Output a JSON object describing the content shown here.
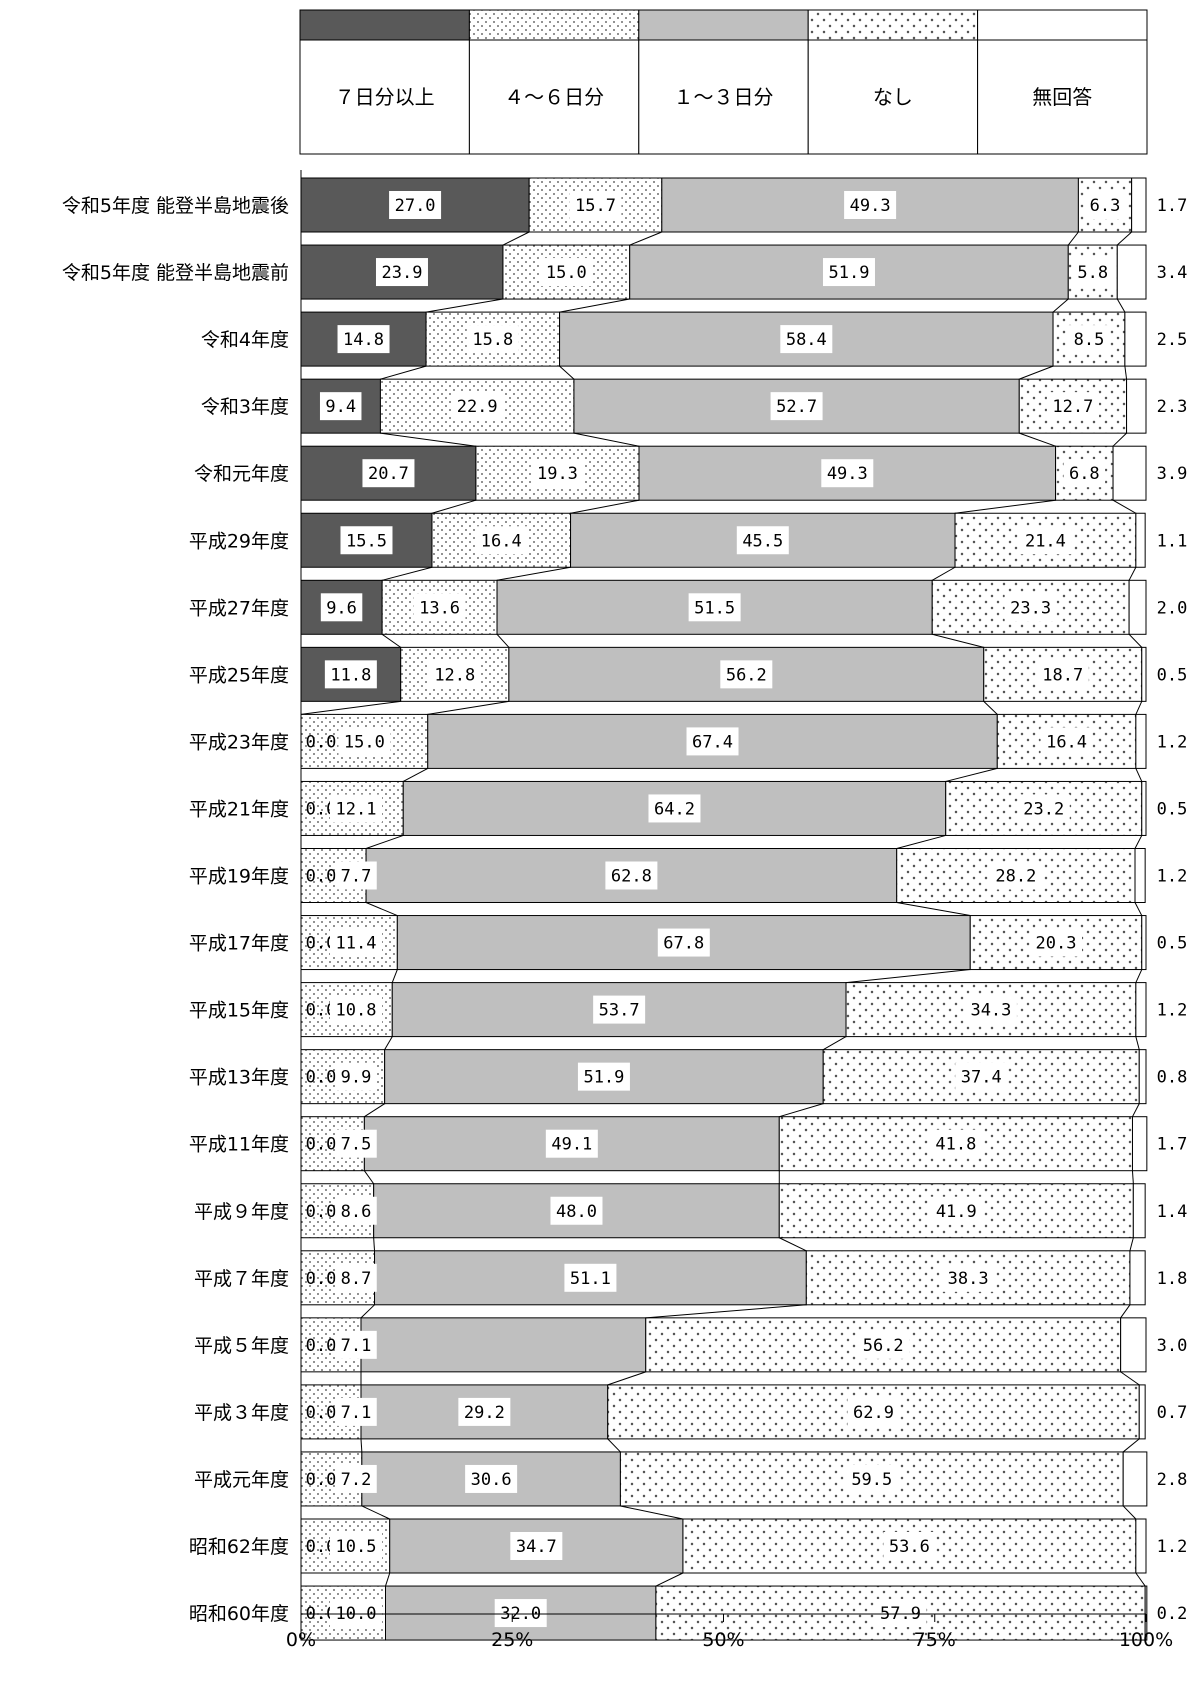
{
  "chart_data": {
    "type": "bar",
    "orientation": "horizontal",
    "stacked": "100%",
    "title": "",
    "xlabel": "",
    "ylabel": "",
    "xlim": [
      0,
      100
    ],
    "x_ticks": [
      "0%",
      "25%",
      "50%",
      "75%",
      "100%"
    ],
    "legend_position": "top",
    "categories": [
      "令和5年度 能登半島地震後",
      "令和5年度 能登半島地震前",
      "令和4年度",
      "令和3年度",
      "令和元年度",
      "平成29年度",
      "平成27年度",
      "平成25年度",
      "平成23年度",
      "平成21年度",
      "平成19年度",
      "平成17年度",
      "平成15年度",
      "平成13年度",
      "平成11年度",
      "平成９年度",
      "平成７年度",
      "平成５年度",
      "平成３年度",
      "平成元年度",
      "昭和62年度",
      "昭和60年度"
    ],
    "series": [
      {
        "name": "７日分以上",
        "color": "#595959",
        "pattern": "solid-dark",
        "values": [
          27.0,
          23.9,
          14.8,
          9.4,
          20.7,
          15.5,
          9.6,
          11.8,
          0.0,
          0.0,
          0.0,
          0.0,
          0.0,
          0.0,
          0.0,
          0.0,
          0.0,
          0.0,
          0.0,
          0.0,
          0.0,
          0.0
        ],
        "labels": [
          "27.0",
          "23.9",
          "14.8",
          "9.4",
          "20.7",
          "15.5",
          "9.6",
          "11.8",
          "0.0",
          "0.0",
          "0.0",
          "0.0",
          "0.0",
          "0.0",
          "0.0",
          "0.0",
          "0.0",
          "0.0",
          "0.0",
          "0.0",
          "0.0",
          "0.0"
        ]
      },
      {
        "name": "４～６日分",
        "color": "#ffffff",
        "pattern": "dots",
        "values": [
          15.7,
          15.0,
          15.8,
          22.9,
          19.3,
          16.4,
          13.6,
          12.8,
          15.0,
          12.1,
          7.7,
          11.4,
          10.8,
          9.9,
          7.5,
          8.6,
          8.7,
          7.1,
          7.1,
          7.2,
          10.5,
          10.0
        ],
        "labels": [
          "15.7",
          "15.0",
          "15.8",
          "22.9",
          "19.3",
          "16.4",
          "13.6",
          "12.8",
          "15.0",
          "12.1",
          "7.7",
          "11.4",
          "10.8",
          "9.9",
          "7.5",
          "8.6",
          "8.7",
          "7.1",
          "7.1",
          "7.2",
          "10.5",
          "10.0"
        ]
      },
      {
        "name": "１～３日分",
        "color": "#bfbfbf",
        "pattern": "solid-light",
        "values": [
          49.3,
          51.9,
          58.4,
          52.7,
          49.3,
          45.5,
          51.5,
          56.2,
          67.4,
          64.2,
          62.8,
          67.8,
          53.7,
          51.9,
          49.1,
          48.0,
          51.1,
          33.7,
          29.2,
          30.6,
          34.7,
          32.0
        ],
        "labels": [
          "49.3",
          "51.9",
          "58.4",
          "52.7",
          "49.3",
          "45.5",
          "51.5",
          "56.2",
          "67.4",
          "64.2",
          "62.8",
          "67.8",
          "53.7",
          "51.9",
          "49.1",
          "48.0",
          "51.1",
          "",
          "29.2",
          "30.6",
          "34.7",
          "32.0"
        ]
      },
      {
        "name": "なし",
        "color": "#ffffff",
        "pattern": "cross-hatch",
        "values": [
          6.3,
          5.8,
          8.5,
          12.7,
          6.8,
          21.4,
          23.3,
          18.7,
          16.4,
          23.2,
          28.2,
          20.3,
          34.3,
          37.4,
          41.8,
          41.9,
          38.3,
          56.2,
          62.9,
          59.5,
          53.6,
          57.9
        ],
        "labels": [
          "6.3",
          "5.8",
          "8.5",
          "12.7",
          "6.8",
          "21.4",
          "23.3",
          "18.7",
          "16.4",
          "23.2",
          "28.2",
          "20.3",
          "34.3",
          "37.4",
          "41.8",
          "41.9",
          "38.3",
          "56.2",
          "62.9",
          "59.5",
          "53.6",
          "57.9"
        ]
      },
      {
        "name": "無回答",
        "color": "#ffffff",
        "pattern": "blank",
        "values": [
          1.7,
          3.4,
          2.5,
          2.3,
          3.9,
          1.1,
          2.0,
          0.5,
          1.2,
          0.5,
          1.2,
          0.5,
          1.2,
          0.8,
          1.7,
          1.4,
          1.8,
          3.0,
          0.7,
          2.8,
          1.2,
          0.2
        ],
        "labels": [
          "1.7",
          "3.4",
          "2.5",
          "2.3",
          "3.9",
          "1.1",
          "2.0",
          "0.5",
          "1.2",
          "0.5",
          "1.2",
          "0.5",
          "1.2",
          "0.8",
          "1.7",
          "1.4",
          "1.8",
          "3.0",
          "0.7",
          "2.8",
          "1.2",
          "0.2"
        ]
      }
    ]
  }
}
